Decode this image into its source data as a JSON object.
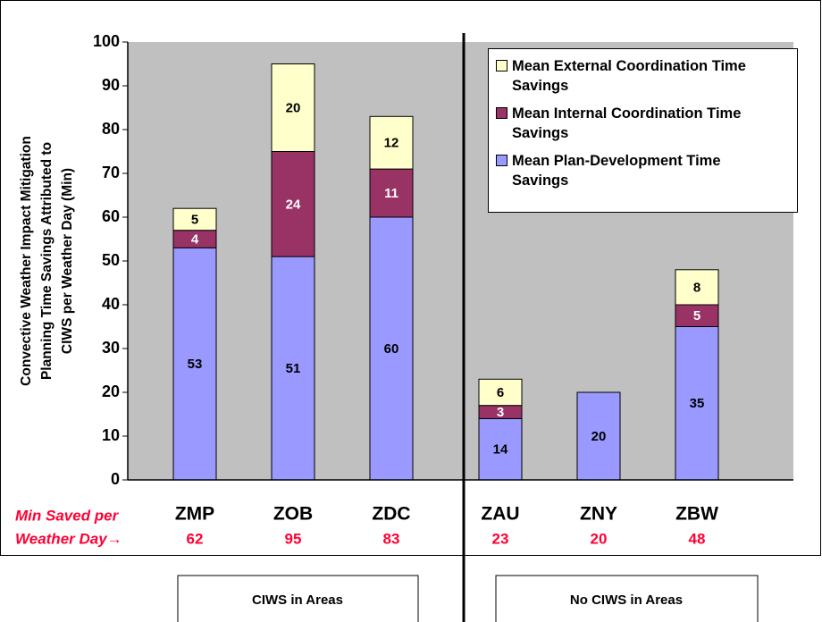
{
  "chart_data": {
    "type": "stacked_bar",
    "y_label_lines": [
      "Convective Weather Impact Mitigation",
      "Planning Time Savings Attributed to",
      "CIWS per Weather Day (Min)"
    ],
    "categories": [
      "ZMP",
      "ZOB",
      "ZDC",
      "ZAU",
      "ZNY",
      "ZBW"
    ],
    "series": [
      {
        "name": "Mean Plan-Development Time Savings",
        "color": "#9999ff",
        "values": [
          53,
          51,
          60,
          14,
          20,
          35
        ]
      },
      {
        "name": "Mean Internal Coordination Time Savings",
        "color": "#993366",
        "values": [
          4,
          24,
          11,
          3,
          null,
          5
        ]
      },
      {
        "name": "Mean External Coordination Time Savings",
        "color": "#ffffcc",
        "values": [
          5,
          20,
          12,
          6,
          null,
          8
        ]
      }
    ],
    "totals_label": [
      "Min Saved per",
      "Weather Day→"
    ],
    "totals": [
      62,
      95,
      83,
      23,
      20,
      48
    ],
    "group_labels": [
      "CIWS in Areas",
      "No CIWS in Areas"
    ],
    "ylim": [
      0,
      100
    ],
    "yticks": [
      0,
      10,
      20,
      30,
      40,
      50,
      60,
      70,
      80,
      90,
      100
    ],
    "legend": "upper right"
  }
}
